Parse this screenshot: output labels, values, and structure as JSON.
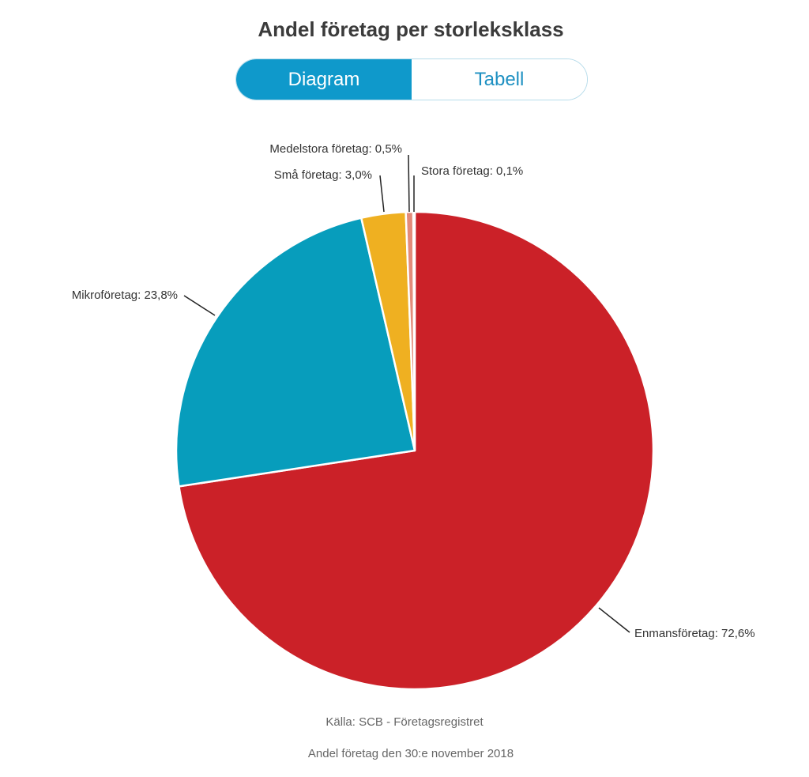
{
  "title": "Andel företag per storleksklass",
  "toggle": {
    "diagram_label": "Diagram",
    "table_label": "Tabell",
    "active": "Diagram"
  },
  "chart_data": {
    "type": "pie",
    "title": "Andel företag per storleksklass",
    "slices": [
      {
        "name": "Enmansföretag",
        "value": 72.6,
        "label": "Enmansföretag: 72,6%",
        "color": "#cb2128"
      },
      {
        "name": "Mikroföretag",
        "value": 23.8,
        "label": "Mikroföretag: 23,8%",
        "color": "#079dbc"
      },
      {
        "name": "Små företag",
        "value": 3.0,
        "label": "Små företag: 3,0%",
        "color": "#efb021"
      },
      {
        "name": "Medelstora företag",
        "value": 0.5,
        "label": "Medelstora företag: 0,5%",
        "color": "#e38b7a"
      },
      {
        "name": "Stora företag",
        "value": 0.1,
        "label": "Stora företag: 0,1%",
        "color": "#f0bcae"
      }
    ],
    "start_angle": "12 o'clock",
    "direction": "clockwise",
    "unit": "%"
  },
  "source": "Källa: SCB - Företagsregistret",
  "subtitle": "Andel företag den 30:e november 2018"
}
